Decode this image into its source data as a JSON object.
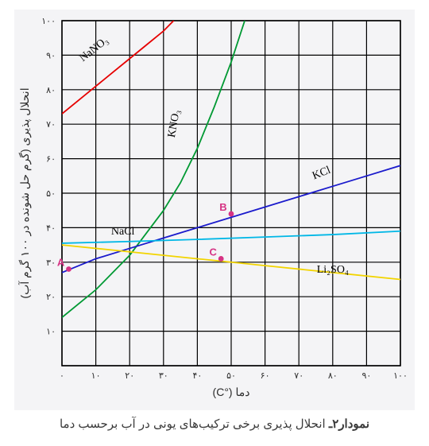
{
  "chart": {
    "type": "line",
    "background_color": "#f4f4f6",
    "plot_background": "#f4f4f6",
    "grid_color": "#000000",
    "grid_line_width": 1.2,
    "border_line_width": 1.6,
    "xlim": [
      0,
      100
    ],
    "ylim": [
      0,
      100
    ],
    "xtick_step": 10,
    "ytick_step": 10,
    "tick_fontsize": 11,
    "tick_color": "#2b2b2b",
    "xlabel": "دما (°C)",
    "ylabel": "انحلال پذیری (گرم حل شونده در ۱۰۰ گرم آب)",
    "label_fontsize": 14,
    "label_color": "#2b2b2b",
    "series_line_width": 1.8,
    "series": {
      "NaNO3": {
        "color": "#e60000",
        "label": "NaNO₃",
        "label_pos": [
          10,
          91
        ],
        "label_rot": -38,
        "points": [
          [
            0,
            73
          ],
          [
            5,
            77
          ],
          [
            10,
            81
          ],
          [
            15,
            85
          ],
          [
            20,
            89
          ],
          [
            25,
            93
          ],
          [
            30,
            97
          ],
          [
            33,
            100
          ]
        ]
      },
      "KNO3": {
        "color": "#009933",
        "label": "KNO₃",
        "label_pos": [
          34,
          70
        ],
        "label_rot": -80,
        "points": [
          [
            0,
            14
          ],
          [
            10,
            22
          ],
          [
            20,
            32
          ],
          [
            30,
            45
          ],
          [
            35,
            53
          ],
          [
            40,
            63
          ],
          [
            45,
            75
          ],
          [
            50,
            88
          ],
          [
            54,
            100
          ]
        ]
      },
      "KCl": {
        "color": "#1a1acc",
        "label": "KCl",
        "label_pos": [
          77,
          55
        ],
        "label_rot": -22,
        "points": [
          [
            0,
            27
          ],
          [
            10,
            31
          ],
          [
            20,
            34
          ],
          [
            30,
            37
          ],
          [
            40,
            40
          ],
          [
            50,
            43
          ],
          [
            60,
            46
          ],
          [
            70,
            49
          ],
          [
            80,
            52
          ],
          [
            90,
            55
          ],
          [
            100,
            58
          ]
        ]
      },
      "NaCl": {
        "color": "#00b7e6",
        "label": "NaCl",
        "label_pos": [
          18,
          38
        ],
        "label_rot": 0,
        "points": [
          [
            0,
            35.5
          ],
          [
            20,
            36
          ],
          [
            40,
            36.6
          ],
          [
            60,
            37.3
          ],
          [
            80,
            38
          ],
          [
            100,
            39
          ]
        ]
      },
      "Li2SO4": {
        "color": "#f2d400",
        "label": "Li₂SO₄",
        "label_pos": [
          80,
          27
        ],
        "label_rot": 0,
        "points": [
          [
            0,
            35
          ],
          [
            20,
            33
          ],
          [
            40,
            31
          ],
          [
            60,
            29
          ],
          [
            80,
            27
          ],
          [
            100,
            25
          ]
        ]
      }
    },
    "markers": {
      "A": {
        "x": 2,
        "y": 28,
        "color": "#d63384",
        "label": "A",
        "fontsize": 13,
        "marker_r": 3.4
      },
      "B": {
        "x": 50,
        "y": 44,
        "color": "#d63384",
        "label": "B",
        "fontsize": 13,
        "marker_r": 3.4
      },
      "C": {
        "x": 47,
        "y": 31,
        "color": "#d63384",
        "label": "C",
        "fontsize": 13,
        "marker_r": 3.4
      }
    },
    "xticks": [
      "۰",
      "۱۰",
      "۲۰",
      "۳۰",
      "۴۰",
      "۵۰",
      "۶۰",
      "۷۰",
      "۸۰",
      "۹۰",
      "۱۰۰"
    ],
    "yticks": [
      "۰",
      "۱۰",
      "۲۰",
      "۳۰",
      "۴۰",
      "۵۰",
      "۶۰",
      "۷۰",
      "۸۰",
      "۹۰",
      "۱۰۰"
    ]
  },
  "caption": {
    "bold": "نمودار۲ـ",
    "rest": " انحلال پذیری برخی ترکیب‌های یونی در آب برحسب دما"
  }
}
